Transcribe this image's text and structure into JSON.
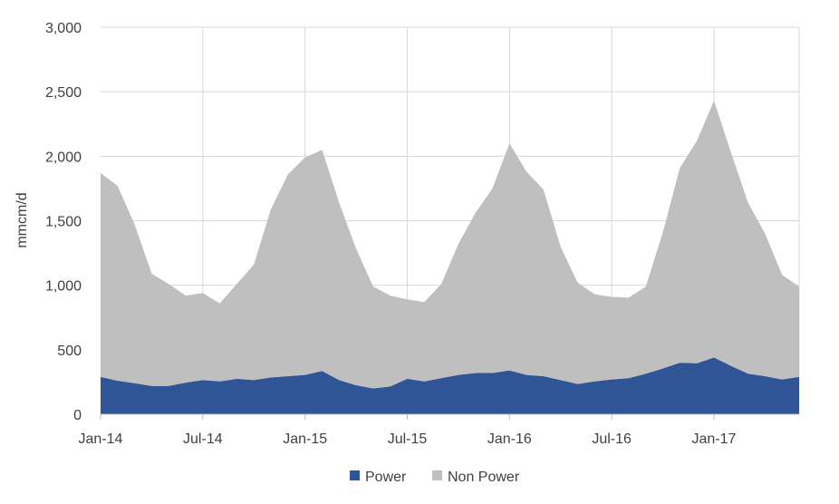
{
  "chart_data": {
    "type": "area",
    "stacked": true,
    "title": "",
    "xlabel": "",
    "ylabel": "mmcm/d",
    "ylim": [
      0,
      3000
    ],
    "yticks": [
      0,
      500,
      1000,
      1500,
      2000,
      2500,
      3000
    ],
    "ytick_labels": [
      "0",
      "500",
      "1,000",
      "1,500",
      "2,000",
      "2,500",
      "3,000"
    ],
    "x": [
      "Jan-14",
      "Feb-14",
      "Mar-14",
      "Apr-14",
      "May-14",
      "Jun-14",
      "Jul-14",
      "Aug-14",
      "Sep-14",
      "Oct-14",
      "Nov-14",
      "Dec-14",
      "Jan-15",
      "Feb-15",
      "Mar-15",
      "Apr-15",
      "May-15",
      "Jun-15",
      "Jul-15",
      "Aug-15",
      "Sep-15",
      "Oct-15",
      "Nov-15",
      "Dec-15",
      "Jan-16",
      "Feb-16",
      "Mar-16",
      "Apr-16",
      "May-16",
      "Jun-16",
      "Jul-16",
      "Aug-16",
      "Sep-16",
      "Oct-16",
      "Nov-16",
      "Dec-16",
      "Jan-17",
      "Feb-17",
      "Mar-17",
      "Apr-17",
      "May-17",
      "Jun-17"
    ],
    "xtick_labels": [
      "Jan-14",
      "Jul-14",
      "Jan-15",
      "Jul-15",
      "Jan-16",
      "Jul-16",
      "Jan-17"
    ],
    "grid": true,
    "legend_position": "bottom",
    "series": [
      {
        "name": "Power",
        "color": "#2F5597",
        "values": [
          290,
          260,
          240,
          220,
          220,
          245,
          265,
          255,
          275,
          265,
          285,
          295,
          305,
          335,
          265,
          225,
          200,
          215,
          275,
          255,
          280,
          305,
          320,
          320,
          340,
          305,
          295,
          265,
          235,
          255,
          270,
          280,
          315,
          355,
          400,
          395,
          440,
          375,
          315,
          295,
          270,
          290
        ]
      },
      {
        "name": "Non Power",
        "color": "#BFBFBF",
        "values": [
          1580,
          1510,
          1230,
          870,
          790,
          675,
          675,
          605,
          735,
          895,
          1305,
          1565,
          1685,
          1715,
          1375,
          1055,
          790,
          705,
          615,
          615,
          730,
          1015,
          1240,
          1430,
          1760,
          1575,
          1445,
          1035,
          785,
          675,
          640,
          625,
          675,
          1055,
          1510,
          1725,
          1990,
          1655,
          1325,
          1105,
          810,
          700
        ]
      }
    ]
  }
}
